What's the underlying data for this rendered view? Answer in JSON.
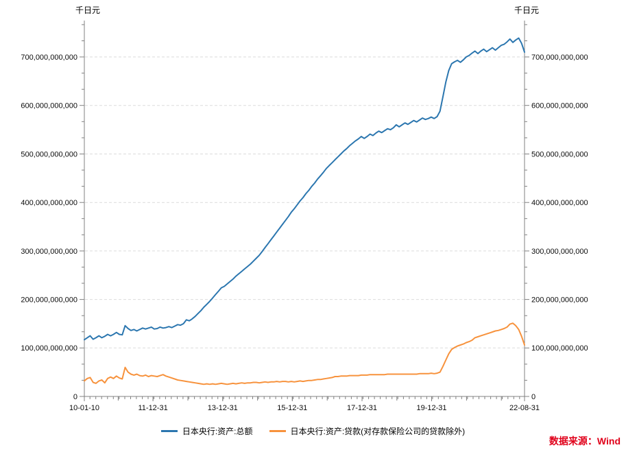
{
  "chart_data": {
    "type": "line",
    "title": "",
    "y_unit_label": "千日元",
    "xlabel": "",
    "legend_position": "bottom-center",
    "grid": "horizontal dashed gridlines at major y ticks",
    "x_range": {
      "start": "2010-01-10",
      "end": "2022-08-31"
    },
    "x_tick_labels": [
      "10-01-10",
      "11-12-31",
      "13-12-31",
      "15-12-31",
      "17-12-31",
      "19-12-31",
      "22-08-31"
    ],
    "x_minor_tick_interval_months": 2,
    "y_axis": {
      "min": 0,
      "max": 775000000000,
      "major_tick_step": 100000000000,
      "max_labeled_tick": 700000000000,
      "minor_ticks_per_major": 3,
      "mirrored_right_axis": true
    },
    "value_multiplier": 1000000000,
    "x_monthly": {
      "start": "2010-01",
      "end": "2022-08",
      "points": 152
    },
    "series": [
      {
        "name": "日本央行:资产:总额",
        "color": "#2B76AF",
        "values_1e9": [
          117,
          121,
          125,
          118,
          121,
          125,
          121,
          124,
          128,
          125,
          128,
          132,
          128,
          127,
          146,
          140,
          136,
          138,
          135,
          138,
          141,
          139,
          141,
          143,
          139,
          140,
          143,
          141,
          142,
          144,
          142,
          145,
          148,
          147,
          150,
          158,
          156,
          160,
          165,
          171,
          177,
          184,
          190,
          196,
          203,
          210,
          217,
          224,
          227,
          232,
          237,
          242,
          248,
          253,
          258,
          263,
          268,
          273,
          279,
          285,
          291,
          299,
          307,
          315,
          323,
          331,
          339,
          347,
          355,
          363,
          371,
          380,
          387,
          395,
          403,
          410,
          418,
          425,
          433,
          440,
          448,
          455,
          462,
          470,
          476,
          482,
          488,
          494,
          500,
          506,
          511,
          517,
          522,
          527,
          531,
          536,
          532,
          536,
          541,
          538,
          543,
          547,
          544,
          548,
          552,
          550,
          554,
          560,
          556,
          560,
          564,
          561,
          565,
          569,
          566,
          570,
          574,
          571,
          573,
          576,
          573,
          577,
          588,
          618,
          648,
          672,
          686,
          690,
          693,
          689,
          694,
          700,
          703,
          708,
          712,
          707,
          712,
          716,
          711,
          715,
          719,
          714,
          719,
          724,
          726,
          731,
          737,
          730,
          735,
          739,
          728,
          710
        ]
      },
      {
        "name": "日本央行:资产:贷款(对存款保险公司的贷款除外)",
        "color": "#F7923C",
        "values_1e9": [
          32,
          37,
          39,
          29,
          27,
          32,
          34,
          28,
          37,
          40,
          37,
          42,
          38,
          36,
          60,
          50,
          46,
          44,
          46,
          43,
          42,
          44,
          41,
          43,
          42,
          41,
          43,
          45,
          42,
          40,
          38,
          36,
          34,
          33,
          32,
          31,
          30,
          29,
          28,
          27,
          26,
          25,
          26,
          25,
          26,
          25,
          26,
          27,
          26,
          25,
          26,
          27,
          26,
          27,
          28,
          27,
          28,
          28,
          29,
          29,
          28,
          29,
          30,
          29,
          30,
          30,
          31,
          30,
          31,
          31,
          30,
          31,
          30,
          31,
          32,
          31,
          32,
          33,
          33,
          34,
          35,
          35,
          36,
          37,
          38,
          39,
          41,
          41,
          42,
          42,
          42,
          43,
          43,
          43,
          43,
          44,
          44,
          44,
          45,
          45,
          45,
          45,
          45,
          45,
          46,
          46,
          46,
          46,
          46,
          46,
          46,
          46,
          46,
          46,
          46,
          47,
          47,
          47,
          47,
          48,
          47,
          48,
          50,
          62,
          75,
          88,
          97,
          101,
          104,
          106,
          108,
          111,
          113,
          116,
          121,
          123,
          125,
          127,
          129,
          131,
          133,
          135,
          136,
          138,
          140,
          143,
          149,
          151,
          146,
          138,
          124,
          106
        ]
      }
    ]
  },
  "source": {
    "text": "数据来源：Wind",
    "color": "#E0001A"
  },
  "colors": {
    "gridline": "#DBDBDB",
    "axis": "#808080",
    "tick_label": "#0A0A0A"
  }
}
